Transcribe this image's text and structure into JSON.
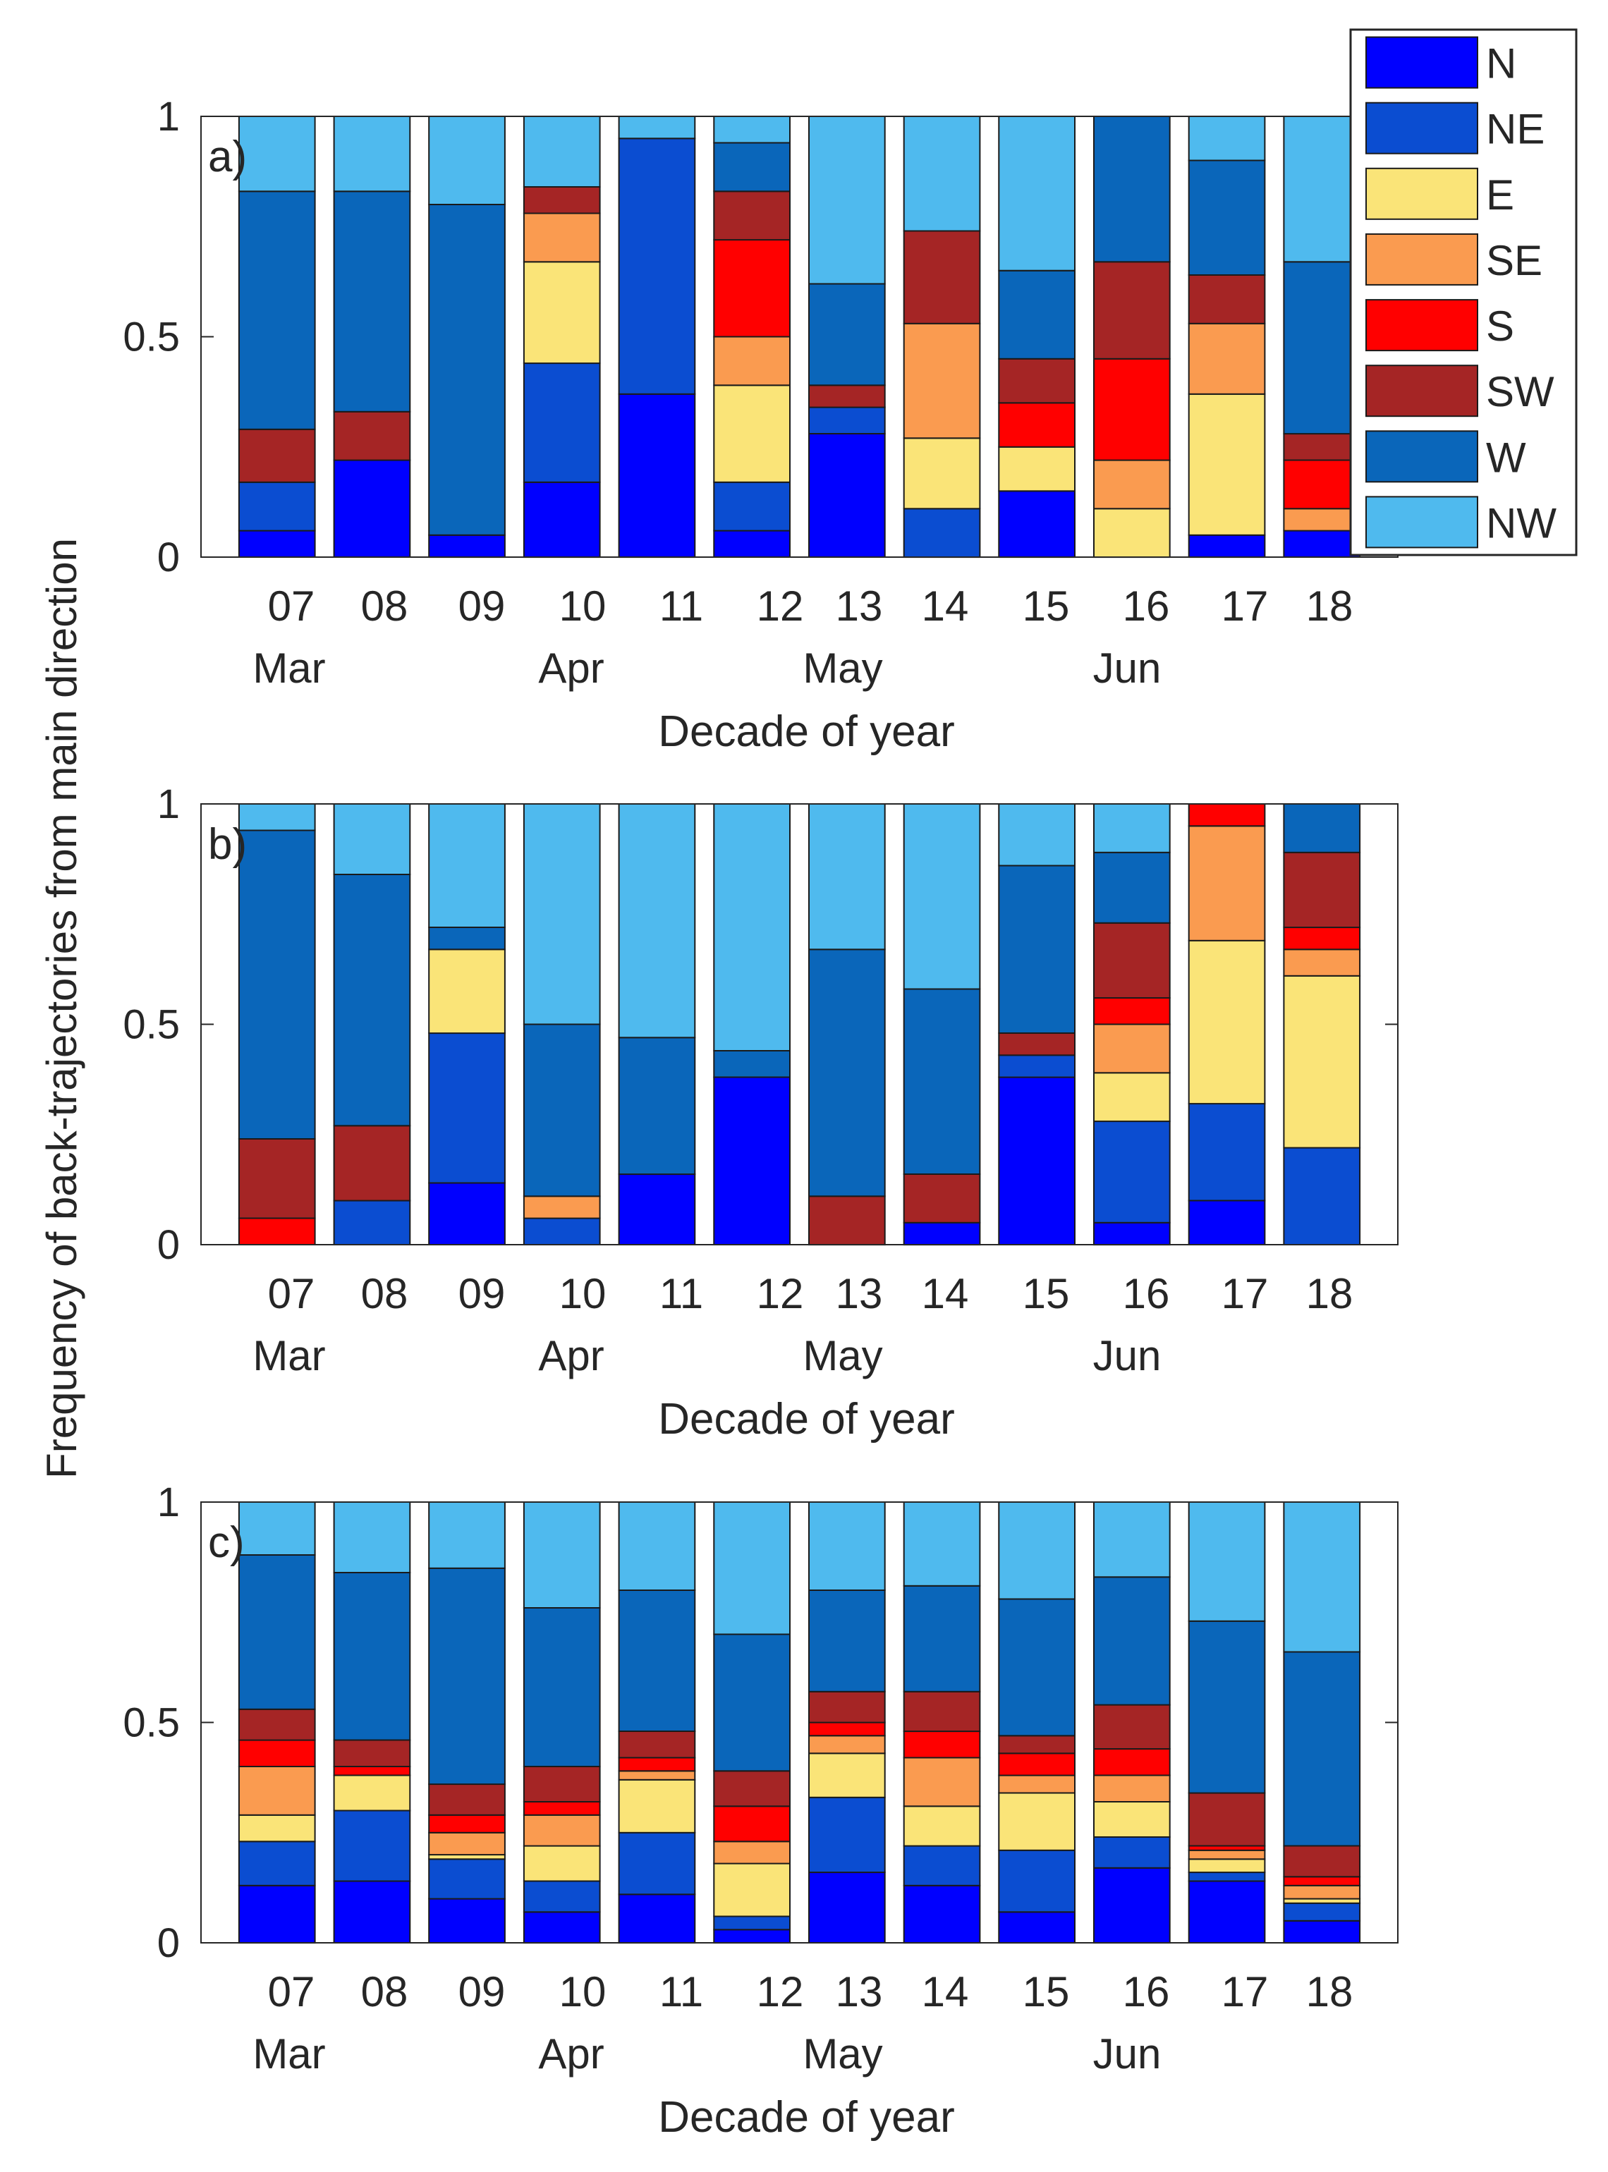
{
  "figure": {
    "ylabel": "Frequency of back-trajectories from main direction",
    "legend": [
      {
        "label": "N",
        "color": "#0000FF"
      },
      {
        "label": "NE",
        "color": "#0B4DD1"
      },
      {
        "label": "E",
        "color": "#FAE478"
      },
      {
        "label": "SE",
        "color": "#FA9B50"
      },
      {
        "label": "S",
        "color": "#FF0000"
      },
      {
        "label": "SW",
        "color": "#A52525"
      },
      {
        "label": "W",
        "color": "#0A66BA"
      },
      {
        "label": "NW",
        "color": "#4FBAEE"
      }
    ]
  },
  "chart_data": [
    {
      "type": "bar",
      "stacked": true,
      "panel_label": "a)",
      "xlabel": "Decade of year",
      "ylim": [
        0,
        1
      ],
      "yticks": [
        "0",
        "0.5",
        "1"
      ],
      "categories": [
        "07",
        "08",
        "09",
        "10",
        "11",
        "12",
        "13",
        "14",
        "15",
        "16",
        "17",
        "18"
      ],
      "months": [
        {
          "label": "Mar",
          "at": 0
        },
        {
          "label": "Apr",
          "at": 3
        },
        {
          "label": "May",
          "at": 6
        },
        {
          "label": "Jun",
          "at": 9
        }
      ],
      "series": [
        {
          "name": "N",
          "values": [
            0.06,
            0.22,
            0.05,
            0.17,
            0.37,
            0.06,
            0.28,
            0.0,
            0.15,
            0.0,
            0.05,
            0.06
          ]
        },
        {
          "name": "NE",
          "values": [
            0.11,
            0.0,
            0.0,
            0.27,
            0.58,
            0.11,
            0.06,
            0.11,
            0.0,
            0.0,
            0.0,
            0.0
          ]
        },
        {
          "name": "E",
          "values": [
            0.0,
            0.0,
            0.0,
            0.23,
            0.0,
            0.22,
            0.0,
            0.16,
            0.1,
            0.11,
            0.32,
            0.0
          ]
        },
        {
          "name": "SE",
          "values": [
            0.0,
            0.0,
            0.0,
            0.11,
            0.0,
            0.11,
            0.0,
            0.26,
            0.0,
            0.11,
            0.16,
            0.05
          ]
        },
        {
          "name": "S",
          "values": [
            0.0,
            0.0,
            0.0,
            0.0,
            0.0,
            0.22,
            0.0,
            0.0,
            0.1,
            0.23,
            0.0,
            0.11
          ]
        },
        {
          "name": "SW",
          "values": [
            0.12,
            0.11,
            0.0,
            0.06,
            0.0,
            0.11,
            0.05,
            0.21,
            0.1,
            0.22,
            0.11,
            0.06
          ]
        },
        {
          "name": "W",
          "values": [
            0.54,
            0.5,
            0.75,
            0.0,
            0.0,
            0.11,
            0.23,
            0.0,
            0.2,
            0.33,
            0.26,
            0.39
          ]
        },
        {
          "name": "NW",
          "values": [
            0.17,
            0.17,
            0.2,
            0.16,
            0.05,
            0.06,
            0.38,
            0.26,
            0.35,
            0.0,
            0.1,
            0.33
          ]
        }
      ]
    },
    {
      "type": "bar",
      "stacked": true,
      "panel_label": "b)",
      "xlabel": "Decade of year",
      "ylim": [
        0,
        1
      ],
      "yticks": [
        "0",
        "0.5",
        "1"
      ],
      "categories": [
        "07",
        "08",
        "09",
        "10",
        "11",
        "12",
        "13",
        "14",
        "15",
        "16",
        "17",
        "18"
      ],
      "months": [
        {
          "label": "Mar",
          "at": 0
        },
        {
          "label": "Apr",
          "at": 3
        },
        {
          "label": "May",
          "at": 6
        },
        {
          "label": "Jun",
          "at": 9
        }
      ],
      "series": [
        {
          "name": "N",
          "values": [
            0.0,
            0.0,
            0.14,
            0.0,
            0.16,
            0.38,
            0.0,
            0.05,
            0.38,
            0.05,
            0.1,
            0.0
          ]
        },
        {
          "name": "NE",
          "values": [
            0.0,
            0.1,
            0.34,
            0.06,
            0.0,
            0.0,
            0.0,
            0.0,
            0.05,
            0.23,
            0.22,
            0.22
          ]
        },
        {
          "name": "E",
          "values": [
            0.0,
            0.0,
            0.19,
            0.0,
            0.0,
            0.0,
            0.0,
            0.0,
            0.0,
            0.11,
            0.37,
            0.39
          ]
        },
        {
          "name": "SE",
          "values": [
            0.0,
            0.0,
            0.0,
            0.05,
            0.0,
            0.0,
            0.0,
            0.0,
            0.0,
            0.11,
            0.26,
            0.06
          ]
        },
        {
          "name": "S",
          "values": [
            0.06,
            0.0,
            0.0,
            0.0,
            0.0,
            0.0,
            0.0,
            0.0,
            0.0,
            0.06,
            0.05,
            0.05
          ]
        },
        {
          "name": "SW",
          "values": [
            0.18,
            0.17,
            0.0,
            0.0,
            0.0,
            0.0,
            0.11,
            0.11,
            0.05,
            0.17,
            0.0,
            0.17
          ]
        },
        {
          "name": "W",
          "values": [
            0.7,
            0.57,
            0.05,
            0.39,
            0.31,
            0.06,
            0.56,
            0.42,
            0.38,
            0.16,
            0.0,
            0.11
          ]
        },
        {
          "name": "NW",
          "values": [
            0.06,
            0.16,
            0.28,
            0.5,
            0.53,
            0.56,
            0.33,
            0.42,
            0.14,
            0.11,
            0.0,
            0.0
          ]
        }
      ]
    },
    {
      "type": "bar",
      "stacked": true,
      "panel_label": "c)",
      "xlabel": "Decade of year",
      "ylim": [
        0,
        1
      ],
      "yticks": [
        "0",
        "0.5",
        "1"
      ],
      "categories": [
        "07",
        "08",
        "09",
        "10",
        "11",
        "12",
        "13",
        "14",
        "15",
        "16",
        "17",
        "18"
      ],
      "months": [
        {
          "label": "Mar",
          "at": 0
        },
        {
          "label": "Apr",
          "at": 3
        },
        {
          "label": "May",
          "at": 6
        },
        {
          "label": "Jun",
          "at": 9
        }
      ],
      "series": [
        {
          "name": "N",
          "values": [
            0.13,
            0.14,
            0.1,
            0.07,
            0.11,
            0.03,
            0.16,
            0.13,
            0.07,
            0.17,
            0.14,
            0.05
          ]
        },
        {
          "name": "NE",
          "values": [
            0.1,
            0.16,
            0.09,
            0.07,
            0.14,
            0.03,
            0.17,
            0.09,
            0.14,
            0.07,
            0.02,
            0.04
          ]
        },
        {
          "name": "E",
          "values": [
            0.06,
            0.08,
            0.01,
            0.08,
            0.12,
            0.12,
            0.1,
            0.09,
            0.13,
            0.08,
            0.03,
            0.01
          ]
        },
        {
          "name": "SE",
          "values": [
            0.11,
            0.0,
            0.05,
            0.07,
            0.02,
            0.05,
            0.04,
            0.11,
            0.04,
            0.06,
            0.02,
            0.03
          ]
        },
        {
          "name": "S",
          "values": [
            0.06,
            0.02,
            0.04,
            0.03,
            0.03,
            0.08,
            0.03,
            0.06,
            0.05,
            0.06,
            0.01,
            0.02
          ]
        },
        {
          "name": "SW",
          "values": [
            0.07,
            0.06,
            0.07,
            0.08,
            0.06,
            0.08,
            0.07,
            0.09,
            0.04,
            0.1,
            0.12,
            0.07
          ]
        },
        {
          "name": "W",
          "values": [
            0.35,
            0.38,
            0.49,
            0.36,
            0.32,
            0.31,
            0.23,
            0.24,
            0.31,
            0.29,
            0.39,
            0.44
          ]
        },
        {
          "name": "NW",
          "values": [
            0.12,
            0.16,
            0.15,
            0.24,
            0.2,
            0.3,
            0.2,
            0.19,
            0.22,
            0.17,
            0.27,
            0.34
          ]
        }
      ]
    }
  ]
}
